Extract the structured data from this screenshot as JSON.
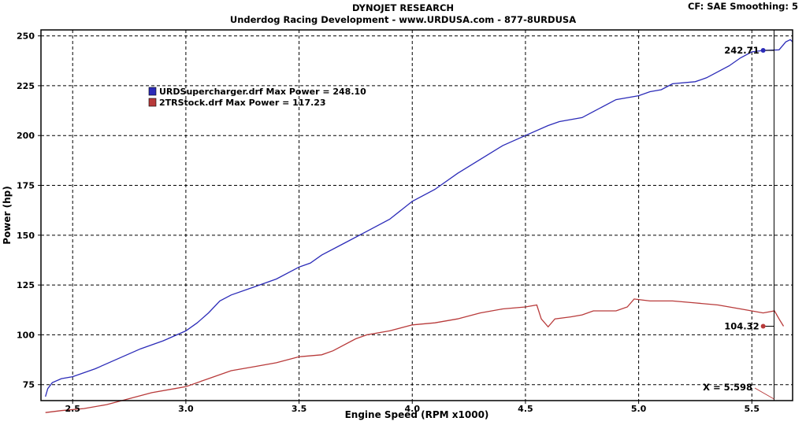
{
  "header": {
    "title": "DYNOJET RESEARCH",
    "subtitle": "Underdog Racing Development - www.URDUSA.com - 877-8URDUSA",
    "cf_smoothing": "CF: SAE  Smoothing: 5"
  },
  "chart_data": {
    "type": "line",
    "title": "DYNOJET RESEARCH",
    "subtitle": "Underdog Racing Development - www.URDUSA.com - 877-8URDUSA",
    "xlabel": "Engine Speed (RPM x1000)",
    "ylabel": "Power (hp)",
    "xlim": [
      2.36,
      5.68
    ],
    "ylim": [
      67,
      253
    ],
    "x_ticks": [
      "2.5",
      "3.0",
      "3.5",
      "4.0",
      "4.5",
      "5.0",
      "5.5"
    ],
    "y_ticks": [
      "75",
      "100",
      "125",
      "150",
      "175",
      "200",
      "225",
      "250"
    ],
    "grid": true,
    "legend_position": "top-left",
    "series": [
      {
        "name": "URDSupercharger.drf",
        "legend_label": "URDSupercharger.drf Max Power = 248.10",
        "color": "#2b2bb8",
        "points": [
          [
            2.38,
            69
          ],
          [
            2.39,
            73
          ],
          [
            2.41,
            76
          ],
          [
            2.45,
            78
          ],
          [
            2.5,
            79
          ],
          [
            2.6,
            83
          ],
          [
            2.7,
            88
          ],
          [
            2.8,
            93
          ],
          [
            2.9,
            97
          ],
          [
            3.0,
            102
          ],
          [
            3.05,
            106
          ],
          [
            3.1,
            111
          ],
          [
            3.15,
            117
          ],
          [
            3.2,
            120
          ],
          [
            3.3,
            124
          ],
          [
            3.4,
            128
          ],
          [
            3.5,
            134
          ],
          [
            3.55,
            136
          ],
          [
            3.6,
            140
          ],
          [
            3.7,
            146
          ],
          [
            3.8,
            152
          ],
          [
            3.9,
            158
          ],
          [
            4.0,
            167
          ],
          [
            4.1,
            173
          ],
          [
            4.2,
            181
          ],
          [
            4.3,
            188
          ],
          [
            4.4,
            195
          ],
          [
            4.5,
            200
          ],
          [
            4.6,
            205
          ],
          [
            4.65,
            207
          ],
          [
            4.75,
            209
          ],
          [
            4.8,
            212
          ],
          [
            4.9,
            218
          ],
          [
            5.0,
            220
          ],
          [
            5.05,
            222
          ],
          [
            5.1,
            223
          ],
          [
            5.15,
            226
          ],
          [
            5.25,
            227
          ],
          [
            5.3,
            229
          ],
          [
            5.4,
            235
          ],
          [
            5.45,
            239
          ],
          [
            5.5,
            242
          ],
          [
            5.55,
            242.7
          ],
          [
            5.62,
            243
          ],
          [
            5.65,
            247
          ],
          [
            5.67,
            248.1
          ],
          [
            5.68,
            247
          ]
        ]
      },
      {
        "name": "2TRStock.drf",
        "legend_label": "2TRStock.drf Max Power = 117.23",
        "color": "#b83a3a",
        "points": [
          [
            2.38,
            61
          ],
          [
            2.45,
            62
          ],
          [
            2.55,
            63
          ],
          [
            2.65,
            65
          ],
          [
            2.75,
            68
          ],
          [
            2.85,
            71
          ],
          [
            2.95,
            73
          ],
          [
            3.0,
            74
          ],
          [
            3.1,
            78
          ],
          [
            3.2,
            82
          ],
          [
            3.3,
            84
          ],
          [
            3.4,
            86
          ],
          [
            3.5,
            89
          ],
          [
            3.6,
            90
          ],
          [
            3.65,
            92
          ],
          [
            3.75,
            98
          ],
          [
            3.8,
            100
          ],
          [
            3.9,
            102
          ],
          [
            4.0,
            105
          ],
          [
            4.1,
            106
          ],
          [
            4.2,
            108
          ],
          [
            4.3,
            111
          ],
          [
            4.4,
            113
          ],
          [
            4.5,
            114
          ],
          [
            4.55,
            115
          ],
          [
            4.57,
            108
          ],
          [
            4.6,
            104
          ],
          [
            4.63,
            108
          ],
          [
            4.7,
            109
          ],
          [
            4.75,
            110
          ],
          [
            4.8,
            112
          ],
          [
            4.9,
            112
          ],
          [
            4.95,
            114
          ],
          [
            4.98,
            118
          ],
          [
            5.05,
            117
          ],
          [
            5.15,
            117
          ],
          [
            5.25,
            116
          ],
          [
            5.35,
            115
          ],
          [
            5.45,
            113
          ],
          [
            5.55,
            111
          ],
          [
            5.6,
            112
          ],
          [
            5.62,
            108
          ],
          [
            5.64,
            104.3
          ]
        ]
      }
    ],
    "annotations": {
      "cursor_x": "X = 5.598",
      "cursor_x_value": 5.598,
      "blue_value_label": "242.71",
      "blue_value": 242.71,
      "red_value_label": "104.32",
      "red_value": 104.32,
      "marker_x": 5.55
    }
  }
}
